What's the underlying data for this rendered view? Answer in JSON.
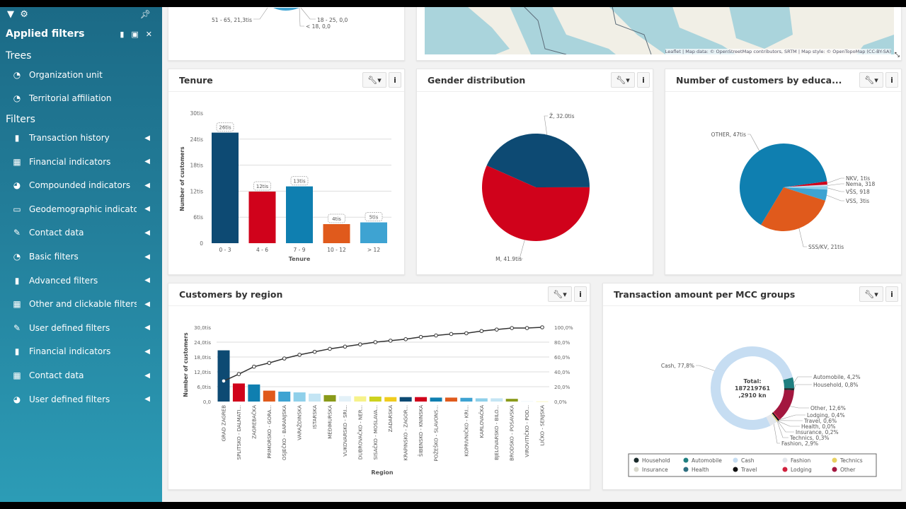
{
  "sidebar": {
    "title": "Applied filters",
    "trees_label": "Trees",
    "filters_label": "Filters",
    "trees": [
      {
        "label": "Organization unit",
        "icon": "dashboard-icon"
      },
      {
        "label": "Territorial affiliation",
        "icon": "dashboard-icon"
      }
    ],
    "filters": [
      {
        "label": "Transaction history",
        "icon": "file-icon"
      },
      {
        "label": "Financial indicators",
        "icon": "table-icon"
      },
      {
        "label": "Compounded indicators",
        "icon": "pie-icon"
      },
      {
        "label": "Geodemographic indicators",
        "icon": "laptop-icon"
      },
      {
        "label": "Contact data",
        "icon": "edit-icon"
      },
      {
        "label": "Basic filters",
        "icon": "dashboard-icon"
      },
      {
        "label": "Advanced filters",
        "icon": "file-icon"
      },
      {
        "label": "Other and clickable filters",
        "icon": "table-icon"
      },
      {
        "label": "User defined filters",
        "icon": "edit-icon"
      },
      {
        "label": "Financial indicators",
        "icon": "file-icon"
      },
      {
        "label": "Contact data",
        "icon": "table-icon"
      },
      {
        "label": "User defined filters",
        "icon": "pie-icon"
      }
    ]
  },
  "age_panel": {
    "labels": [
      "51 - 65, 21,3tis",
      "18 - 25, 0,0",
      "< 18, 0,0"
    ]
  },
  "map_panel": {
    "attribution": "Leaflet | Map data: © OpenStreetMap contributors, SRTM | Map style: © OpenTopoMap (CC-BY-SA)"
  },
  "panels": {
    "tenure": "Tenure",
    "gender": "Gender distribution",
    "education": "Number of customers by educa...",
    "region": "Customers by region",
    "mcc": "Transaction amount per MCC groups"
  },
  "chart_data": [
    {
      "id": "tenure",
      "type": "bar",
      "title": "Tenure",
      "xlabel": "Tenure",
      "ylabel": "Number of customers",
      "categories": [
        "0 - 3",
        "4 - 6",
        "7 - 9",
        "10 - 12",
        "> 12"
      ],
      "values": [
        25.5,
        11.9,
        13.1,
        4.4,
        4.8
      ],
      "value_unit": "tis",
      "data_labels": [
        "26tis",
        "12tis",
        "13tis",
        "4tis",
        "5tis"
      ],
      "yticks": [
        "0",
        "6tis",
        "12tis",
        "18tis",
        "24tis",
        "30tis"
      ],
      "ylim": [
        0,
        30
      ],
      "colors": [
        "#0d4a73",
        "#d0021b",
        "#0f7fb0",
        "#e05a1c",
        "#3ea3d2"
      ],
      "grid": true
    },
    {
      "id": "gender",
      "type": "pie",
      "title": "Gender distribution",
      "slices": [
        {
          "label": "Ž, 32.0tis",
          "value": 32.0,
          "color": "#0d4a73"
        },
        {
          "label": "M, 41.9tis",
          "value": 41.9,
          "color": "#d0021b"
        }
      ]
    },
    {
      "id": "education",
      "type": "pie",
      "title": "Number of customers by educa...",
      "slices": [
        {
          "label": "NKV, 1tis",
          "value": 1.0,
          "color": "#d0021b"
        },
        {
          "label": "Nema, 318",
          "value": 0.318,
          "color": "#e8f4fa"
        },
        {
          "label": "VŠS, 918",
          "value": 0.918,
          "color": "#8fd0ea"
        },
        {
          "label": "VSS, 3tis",
          "value": 3.0,
          "color": "#3ea3d2"
        },
        {
          "label": "SSS/KV, 21tis",
          "value": 21.0,
          "color": "#e05a1c"
        },
        {
          "label": "OTHER, 47tis",
          "value": 47.0,
          "color": "#0f7fb0"
        }
      ]
    },
    {
      "id": "region",
      "type": "bar",
      "title": "Customers by region",
      "xlabel": "Region",
      "ylabel": "Number of customers",
      "ylim": [
        0,
        30
      ],
      "yticks": [
        "0,0",
        "6,0tis",
        "12,0tis",
        "18,0tis",
        "24,0tis",
        "30,0tis"
      ],
      "y2ticks": [
        "0,0%",
        "20,0%",
        "40,0%",
        "60,0%",
        "80,0%",
        "100,0%"
      ],
      "grid": true,
      "categories": [
        "GRAD ZAGREB",
        "SPLITSKO - DALMATI...",
        "ZAGREBAČKA",
        "PRIMORSKO - GORA...",
        "OSJEČKO - BARANJSKA",
        "VARAŽDINSKA",
        "ISTARSKA",
        "MEĐIMURSKA",
        "VUKOVARSKO - SRI...",
        "DUBROVAČKO - NER...",
        "SISAČKO - MOSLAVA...",
        "ZADARSKA",
        "KRAPINSKO - ZAGOR...",
        "ŠIBENSKO - KNINSKA",
        "POŽEŠKO - SLAVONS...",
        "",
        "KOPRIVNIČKO - KRI...",
        "KARLOVAČKA",
        "BJELOVARSKO - BILO...",
        "BRODSKO - POSAVSKA",
        "VIROVITIČKO - POD...",
        "LIČKO - SENJSKA"
      ],
      "values": [
        20.7,
        7.3,
        6.9,
        4.4,
        4.0,
        3.7,
        3.2,
        2.6,
        2.2,
        2.1,
        2.0,
        1.8,
        1.8,
        1.8,
        1.6,
        1.6,
        1.5,
        1.3,
        1.3,
        1.1,
        0.1,
        0.05
      ],
      "cumulative_percent": [
        27.7,
        37,
        47,
        52,
        58,
        63,
        67,
        71,
        74,
        77,
        80,
        82,
        84,
        87,
        89,
        91,
        92,
        95,
        97,
        99,
        99,
        100
      ],
      "colors": [
        "#0d4a73",
        "#d0021b",
        "#0f7fb0",
        "#e05a1c",
        "#3ea3d2",
        "#8fd0ea",
        "#c4e5f4",
        "#8a9a1a",
        "#e3f1f8",
        "#f6f28a",
        "#cdd21e",
        "#f0cc1e",
        "#0d4a73",
        "#d0021b",
        "#0f7fb0",
        "#e05a1c",
        "#3ea3d2",
        "#8fd0ea",
        "#c4e5f4",
        "#8a9a1a",
        "#e3f1f8",
        "#f6f28a"
      ]
    },
    {
      "id": "mcc",
      "type": "donut",
      "title": "Transaction amount per MCC groups",
      "center_label": [
        "Total:",
        "187219761",
        ",2910 kn"
      ],
      "slices": [
        {
          "name": "Automobile",
          "label": "Automobile, 4,2%",
          "value": 4.2,
          "color": "#1f7f80"
        },
        {
          "name": "Household",
          "label": "Household, 0,8%",
          "value": 0.8,
          "color": "#1a2b2b"
        },
        {
          "name": "Other",
          "label": "Other, 12,6%",
          "value": 12.6,
          "color": "#a3173f"
        },
        {
          "name": "Lodging",
          "label": "Lodging, 0,4%",
          "value": 0.4,
          "color": "#d0213d"
        },
        {
          "name": "Travel",
          "label": "Travel, 0,6%",
          "value": 0.6,
          "color": "#111111"
        },
        {
          "name": "Health",
          "label": "Health, 0,0%",
          "value": 0.0,
          "color": "#2f6f80"
        },
        {
          "name": "Insurance",
          "label": "Insurance, 0,2%",
          "value": 0.2,
          "color": "#d8d8cc"
        },
        {
          "name": "Technics",
          "label": "Technics, 0,3%",
          "value": 0.3,
          "color": "#e8d060"
        },
        {
          "name": "Fashion",
          "label": "Fashion, 2,9%",
          "value": 2.9,
          "color": "#e3e7ec"
        },
        {
          "name": "Cash",
          "label": "Cash, 77,8%",
          "value": 77.8,
          "color": "#c6ddf2"
        }
      ],
      "legend": [
        "Household",
        "Automobile",
        "Cash",
        "Fashion",
        "Technics",
        "Insurance",
        "Health",
        "Travel",
        "Lodging",
        "Other"
      ],
      "legend_position": "bottom"
    }
  ]
}
